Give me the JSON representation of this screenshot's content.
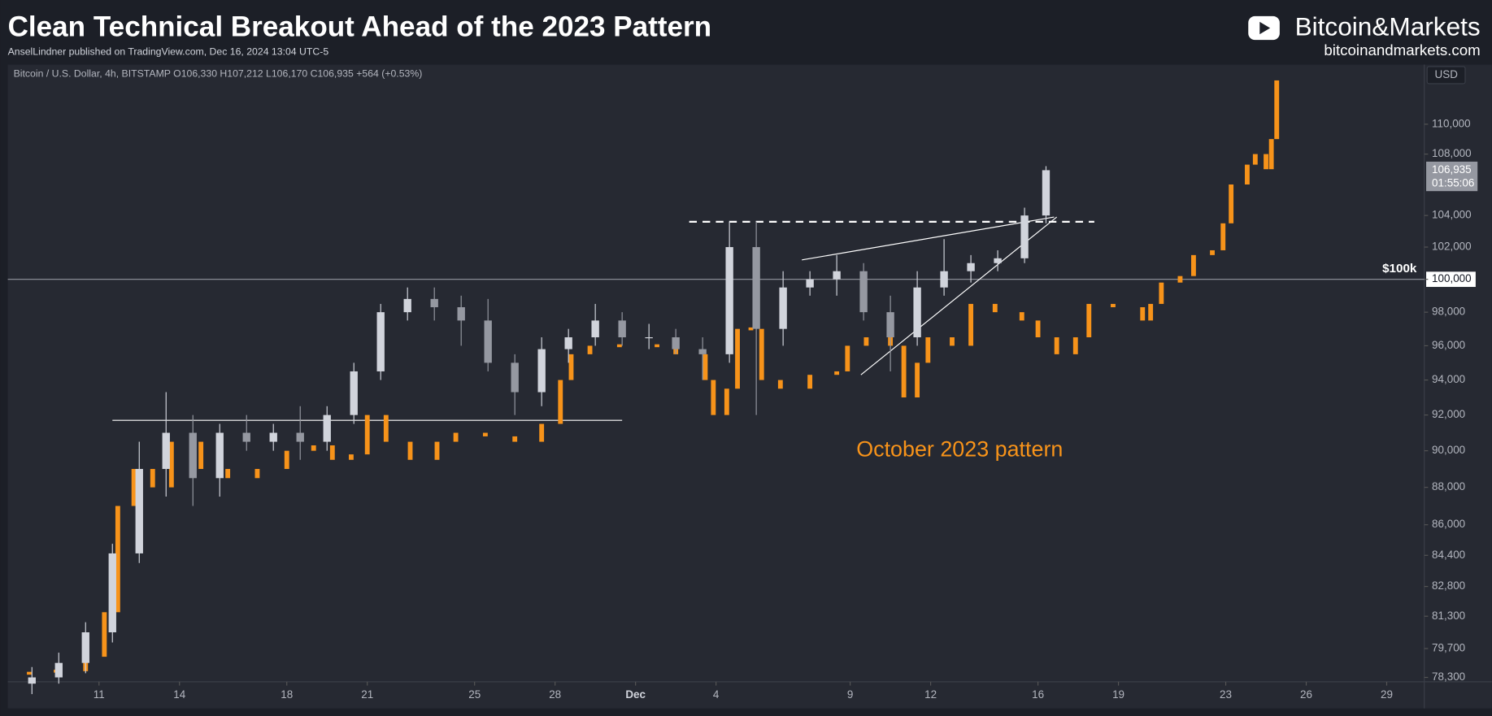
{
  "header": {
    "title": "Clean Technical Breakout Ahead of the 2023 Pattern",
    "subtitle": "AnselLindner published on TradingView.com, Dec 16, 2024 13:04 UTC-5",
    "brand": "Bitcoin&Markets",
    "site": "bitcoinandmarkets.com"
  },
  "chart_data": {
    "type": "candlestick",
    "symbol_info": "Bitcoin / U.S. Dollar, 4h, BITSTAMP  O106,330  H107,212  L106,170  C106,935  +564 (+0.53%)",
    "currency": "USD",
    "up_color": "#d1d4dc",
    "down_color": "#9598a1",
    "x": [
      8.5,
      9.5,
      10.5,
      11.5,
      12.5,
      13.5,
      14.5,
      15.5,
      16.5,
      17.5,
      18.5,
      19.5,
      20.5,
      21.5,
      22.5,
      23.5,
      24.5,
      25.5,
      26.5,
      27.5,
      28.5,
      29.5,
      30.5,
      31.5,
      32.5,
      33.5,
      34.5,
      35.5,
      36.5,
      37.5,
      38.5,
      39.5,
      40.5,
      41.5,
      42.5,
      43.5,
      44.5,
      45.5,
      46.3
    ],
    "open": [
      78000,
      78300,
      79000,
      80500,
      84500,
      89000,
      91000,
      88500,
      91000,
      90500,
      91000,
      90500,
      92000,
      94500,
      98000,
      98800,
      98300,
      97500,
      95000,
      93300,
      95800,
      96500,
      97500,
      96500,
      96500,
      95800,
      95500,
      102000,
      97000,
      99500,
      100000,
      100500,
      98000,
      96500,
      99500,
      100500,
      101000,
      101300,
      104000
    ],
    "high": [
      78800,
      79500,
      81000,
      85000,
      90500,
      93300,
      92000,
      91500,
      92000,
      91500,
      92500,
      92500,
      95000,
      98500,
      99500,
      99500,
      99000,
      98800,
      95500,
      96500,
      97000,
      98500,
      98000,
      97300,
      97000,
      96500,
      103600,
      103600,
      100500,
      100500,
      101500,
      101000,
      99000,
      100500,
      102500,
      101500,
      101800,
      104500,
      107200
    ],
    "low": [
      77500,
      78000,
      78500,
      80000,
      84000,
      87500,
      87000,
      87500,
      90000,
      90000,
      89500,
      90000,
      91500,
      94000,
      97500,
      97500,
      96000,
      94500,
      92000,
      92500,
      95000,
      96000,
      96000,
      95800,
      95500,
      94000,
      95000,
      92000,
      96000,
      99000,
      99000,
      97500,
      94500,
      96000,
      99000,
      99800,
      100500,
      101000,
      103500
    ],
    "close": [
      78300,
      79000,
      80500,
      84500,
      89000,
      91000,
      88500,
      91000,
      90500,
      91000,
      90500,
      92000,
      94500,
      98000,
      98800,
      98300,
      97500,
      95000,
      93300,
      95800,
      96500,
      97500,
      96500,
      96500,
      95800,
      95500,
      102000,
      97000,
      99500,
      100000,
      100500,
      98000,
      96500,
      99500,
      100500,
      101000,
      101300,
      104000,
      106935
    ],
    "overlay": {
      "label": "October 2023 pattern",
      "color": "#f7931a",
      "x": [
        8.4,
        9.4,
        10.5,
        11.2,
        11.7,
        12.3,
        13.0,
        13.7,
        14.8,
        15.8,
        16.9,
        18.0,
        19.0,
        19.7,
        20.4,
        21.0,
        21.7,
        22.6,
        23.6,
        24.3,
        25.4,
        26.5,
        27.5,
        28.2,
        28.6,
        29.3,
        30.4,
        31.8,
        32.5,
        33.6,
        33.9,
        34.4,
        34.8,
        35.3,
        35.7,
        36.4,
        37.5,
        38.5,
        38.9,
        39.6,
        40.5,
        41.0,
        41.5,
        41.9,
        42.8,
        43.5,
        44.4,
        45.4,
        46.0,
        46.7,
        47.4,
        47.9,
        48.8,
        49.9,
        50.2,
        50.6,
        51.3,
        51.8,
        52.5,
        52.9,
        53.2,
        53.8,
        54.1,
        54.5,
        54.7,
        54.9
      ],
      "values": [
        78500,
        78600,
        79300,
        81500,
        87000,
        89000,
        88000,
        90500,
        89000,
        88500,
        89000,
        90000,
        90300,
        89500,
        89800,
        92000,
        90500,
        89500,
        90500,
        91000,
        90800,
        90500,
        91500,
        94000,
        95500,
        96000,
        96000,
        96000,
        95500,
        94000,
        92000,
        93500,
        97000,
        97000,
        94000,
        93500,
        94300,
        94500,
        96000,
        96500,
        96000,
        93000,
        95000,
        96500,
        96000,
        98500,
        98000,
        97500,
        96500,
        95500,
        96500,
        98500,
        98300,
        97500,
        98500,
        99800,
        100200,
        101500,
        101800,
        103500,
        106000,
        107300,
        108000,
        107000,
        109000,
        113000
      ]
    },
    "annotations": [
      {
        "text": "$100k",
        "y": 100000
      },
      {
        "x": [
          11.5,
          30.5
        ],
        "y": [
          91700,
          91700
        ]
      },
      {
        "x": [
          33.0,
          48.1
        ],
        "y": [
          103600,
          103600
        ],
        "dashed": true
      },
      {
        "x": [
          37.2,
          46.6
        ],
        "y": [
          101200,
          103900
        ]
      },
      {
        "x": [
          39.4,
          46.7
        ],
        "y": [
          94300,
          103900
        ]
      }
    ],
    "log_scale": true,
    "ylim": [
      78090,
      114100
    ],
    "yticks": [
      {
        "value": 78300,
        "label": "78,300"
      },
      {
        "value": 79700,
        "label": "79,700"
      },
      {
        "value": 81300,
        "label": "81,300"
      },
      {
        "value": 82800,
        "label": "82,800"
      },
      {
        "value": 84400,
        "label": "84,400"
      },
      {
        "value": 86000,
        "label": "86,000"
      },
      {
        "value": 88000,
        "label": "88,000"
      },
      {
        "value": 90000,
        "label": "90,000"
      },
      {
        "value": 92000,
        "label": "92,000"
      },
      {
        "value": 94000,
        "label": "94,000"
      },
      {
        "value": 96000,
        "label": "96,000"
      },
      {
        "value": 98000,
        "label": "98,000"
      },
      {
        "value": 100000,
        "label": "100,000"
      },
      {
        "value": 102000,
        "label": "102,000"
      },
      {
        "value": 104000,
        "label": "104,000"
      },
      {
        "value": 108000,
        "label": "108,000"
      },
      {
        "value": 110000,
        "label": "110,000"
      }
    ],
    "xlim": [
      7.6,
      60.4
    ],
    "xticks": [
      11,
      14,
      18,
      21,
      25,
      28,
      {
        "value": 31,
        "label": "Dec"
      },
      {
        "value": 34,
        "label": "4"
      },
      {
        "value": 39,
        "label": "9"
      },
      {
        "value": 42,
        "label": "12"
      },
      {
        "value": 46,
        "label": "16"
      },
      {
        "value": 49,
        "label": "19"
      },
      {
        "value": 53,
        "label": "23"
      },
      {
        "value": 56,
        "label": "26"
      },
      {
        "value": 59,
        "label": "29"
      }
    ],
    "last_price": {
      "value": 106935,
      "label": "106,935"
    },
    "countdown": "01:55:06"
  }
}
